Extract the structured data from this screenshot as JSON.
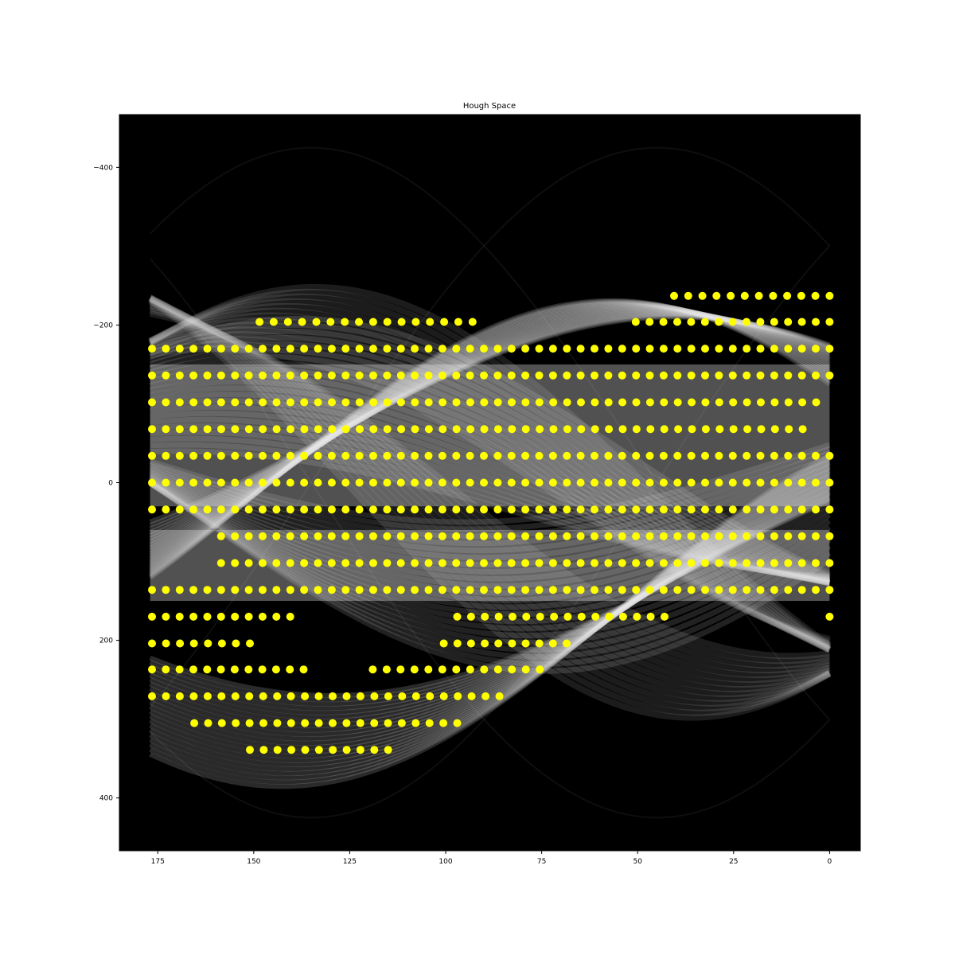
{
  "chart_data": {
    "type": "scatter",
    "title": "Hough Space",
    "xlabel": "",
    "ylabel": "",
    "xlim": [
      185,
      -8
    ],
    "ylim": [
      -467,
      467
    ],
    "y_inverted": true,
    "x_inverted": true,
    "background": "image of accumulated sinusoidal curves (Hough accumulator)",
    "grid": false,
    "legend": "none",
    "colors": {
      "plot_background": "#000000",
      "curves": "#e8e8e8",
      "points": "#ffff00"
    },
    "x_ticks": [
      {
        "value": 175,
        "label": "175"
      },
      {
        "value": 150,
        "label": "150"
      },
      {
        "value": 125,
        "label": "125"
      },
      {
        "value": 100,
        "label": "100"
      },
      {
        "value": 75,
        "label": "75"
      },
      {
        "value": 50,
        "label": "50"
      },
      {
        "value": 25,
        "label": "25"
      },
      {
        "value": 0,
        "label": "0"
      }
    ],
    "y_ticks": [
      {
        "value": -400,
        "label": "−400"
      },
      {
        "value": -200,
        "label": "−200"
      },
      {
        "value": 0,
        "label": "0"
      },
      {
        "value": 200,
        "label": "200"
      },
      {
        "value": 400,
        "label": "400"
      }
    ],
    "rows": [
      {
        "rho": -237,
        "theta_from": 40.5,
        "theta_to": 0
      },
      {
        "rho": -204,
        "theta_from": 148.5,
        "theta_to": 93
      },
      {
        "rho": -204,
        "theta_from": 50.5,
        "theta_to": 0
      },
      {
        "rho": -170,
        "theta_from": 176.5,
        "theta_to": 0
      },
      {
        "rho": -136,
        "theta_from": 176.5,
        "theta_to": 0
      },
      {
        "rho": -102,
        "theta_from": 176.5,
        "theta_to": 3.5
      },
      {
        "rho": -68,
        "theta_from": 176.5,
        "theta_to": 7
      },
      {
        "rho": -34,
        "theta_from": 176.5,
        "theta_to": 0
      },
      {
        "rho": 0,
        "theta_from": 176.5,
        "theta_to": 0
      },
      {
        "rho": 34,
        "theta_from": 176.5,
        "theta_to": 0
      },
      {
        "rho": 68,
        "theta_from": 158.5,
        "theta_to": 0
      },
      {
        "rho": 102,
        "theta_from": 158.5,
        "theta_to": 0
      },
      {
        "rho": 136,
        "theta_from": 176.5,
        "theta_to": 0
      },
      {
        "rho": 170,
        "theta_from": 176.5,
        "theta_to": 140.5
      },
      {
        "rho": 170,
        "theta_from": 97,
        "theta_to": 43
      },
      {
        "rho": 170,
        "theta_from": 0,
        "theta_to": 0
      },
      {
        "rho": 204,
        "theta_from": 176.5,
        "theta_to": 151
      },
      {
        "rho": 204,
        "theta_from": 100.5,
        "theta_to": 68.5
      },
      {
        "rho": 237,
        "theta_from": 176.5,
        "theta_to": 137
      },
      {
        "rho": 237,
        "theta_from": 119,
        "theta_to": 75.5
      },
      {
        "rho": 271,
        "theta_from": 176.5,
        "theta_to": 86
      },
      {
        "rho": 305,
        "theta_from": 165.5,
        "theta_to": 97
      },
      {
        "rho": 339,
        "theta_from": 151,
        "theta_to": 115
      }
    ],
    "theta_step": 3.6
  }
}
